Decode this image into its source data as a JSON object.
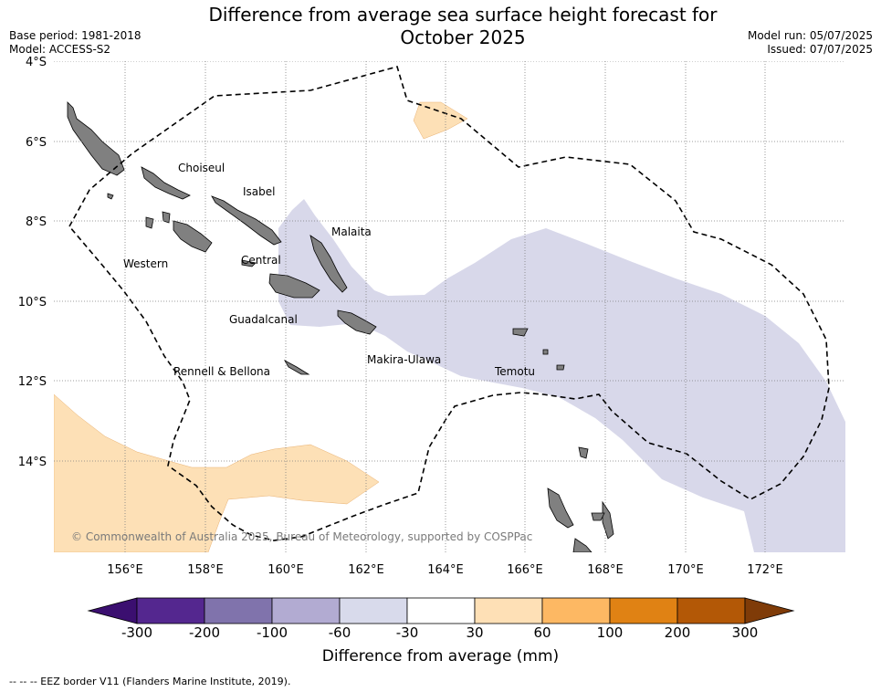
{
  "title": {
    "line1": "Difference from average sea surface height forecast for",
    "line2": "October 2025"
  },
  "meta": {
    "base_period": "Base period: 1981-2018",
    "model": "Model: ACCESS-S2",
    "model_run": "Model run: 05/07/2025",
    "issued": "Issued: 07/07/2025"
  },
  "map": {
    "lat_ticks": [
      "4°S",
      "6°S",
      "8°S",
      "10°S",
      "12°S",
      "14°S"
    ],
    "lon_ticks": [
      "156°E",
      "158°E",
      "160°E",
      "162°E",
      "164°E",
      "166°E",
      "168°E",
      "170°E",
      "172°E"
    ],
    "provinces": [
      "Choiseul",
      "Isabel",
      "Malaita",
      "Western",
      "Central",
      "Guadalcanal",
      "Makira-Ulawa",
      "Rennell & Bellona",
      "Temotu"
    ],
    "copyright": "© Commonwealth of Australia 2025, Bureau of Meteorology, supported by COSPPac",
    "colors": {
      "land": "#808080",
      "negative_anomaly": "#d8d8ea",
      "positive_anomaly": "#fde0b6",
      "eez_border": "#000000",
      "grid": "#7f7f7f"
    }
  },
  "colorbar": {
    "ticks": [
      "-300",
      "-200",
      "-100",
      "-60",
      "-30",
      "30",
      "60",
      "100",
      "200",
      "300"
    ],
    "colors": [
      "#3b0f70",
      "#54278f",
      "#8073ac",
      "#b2abd2",
      "#d8daeb",
      "#ffffff",
      "#fee0b6",
      "#fdb863",
      "#e08214",
      "#b35806",
      "#7f3b08"
    ],
    "label": "Difference from average (mm)"
  },
  "footnote": "--  --  -- EEZ border V11 (Flanders Marine Institute, 2019)."
}
